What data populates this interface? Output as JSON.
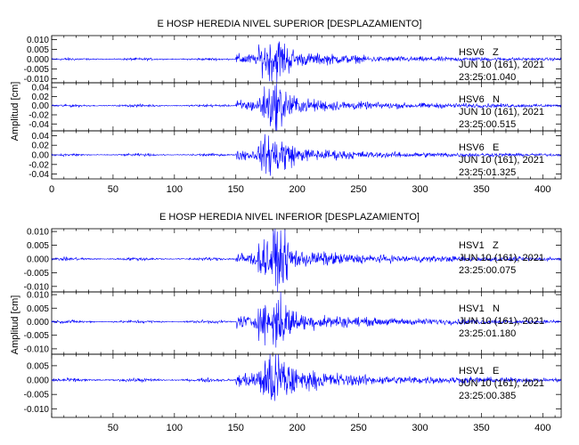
{
  "chart_data": [
    {
      "type": "line",
      "title": "E HOSP HEREDIA NIVEL SUPERIOR [DESPLAZAMIENTO]",
      "ylabel": "Amplitud [cm]",
      "xlim": [
        0,
        415
      ],
      "xticks": [
        0,
        50,
        100,
        150,
        200,
        250,
        300,
        350,
        400
      ],
      "trace_color": "#0000ff",
      "panels": [
        {
          "station": "HSV6",
          "component": "Z",
          "date": "JUN 10 (161), 2021",
          "time": "23:25:01.040",
          "ylim": [
            -0.012,
            0.012
          ],
          "yticks": [
            "0.010",
            "0.005",
            "0.000",
            "-0.005",
            "-0.010"
          ],
          "ytick_values": [
            0.01,
            0.005,
            0,
            -0.005,
            -0.01
          ],
          "peak": 0.01
        },
        {
          "station": "HSV6",
          "component": "N",
          "date": "JUN 10 (161), 2021",
          "time": "23:25:00.515",
          "ylim": [
            -0.055,
            0.05
          ],
          "yticks": [
            "0.04",
            "0.02",
            "0.00",
            "-0.02",
            "-0.04"
          ],
          "ytick_values": [
            0.04,
            0.02,
            0,
            -0.02,
            -0.04
          ],
          "peak": 0.045
        },
        {
          "station": "HSV6",
          "component": "E",
          "date": "JUN 10 (161), 2021",
          "time": "23:25:01.325",
          "ylim": [
            -0.05,
            0.05
          ],
          "yticks": [
            "0.04",
            "0.02",
            "0.00",
            "-0.02",
            "-0.04"
          ],
          "ytick_values": [
            0.04,
            0.02,
            0,
            -0.02,
            -0.04
          ],
          "peak": 0.04
        }
      ]
    },
    {
      "type": "line",
      "title": "E HOSP HEREDIA NIVEL INFERIOR [DESPLAZAMIENTO]",
      "ylabel": "Amplitud [cm]",
      "xlim": [
        0,
        415
      ],
      "xticks": [
        50,
        100,
        150,
        200,
        250,
        300,
        350,
        400
      ],
      "trace_color": "#0000ff",
      "panels": [
        {
          "station": "HSV1",
          "component": "Z",
          "date": "JUN 10 (161), 2021",
          "time": "23:25:00.075",
          "ylim": [
            -0.012,
            0.011
          ],
          "yticks": [
            "0.010",
            "0.005",
            "0.000",
            "-0.005",
            "-0.010"
          ],
          "ytick_values": [
            0.01,
            0.005,
            0,
            -0.005,
            -0.01
          ],
          "peak": 0.009
        },
        {
          "station": "HSV1",
          "component": "N",
          "date": "JUN 10 (161), 2021",
          "time": "23:25:01.180",
          "ylim": [
            -0.012,
            0.011
          ],
          "yticks": [
            "0.010",
            "0.005",
            "0.000",
            "-0.005",
            "-0.010"
          ],
          "ytick_values": [
            0.01,
            0.005,
            0,
            -0.005,
            -0.01
          ],
          "peak": 0.009
        },
        {
          "station": "HSV1",
          "component": "E",
          "date": "JUN 10 (161), 2021",
          "time": "23:25:00.385",
          "ylim": [
            -0.013,
            0.009
          ],
          "yticks": [
            "0.005",
            "0.000",
            "-0.005",
            "-0.010"
          ],
          "ytick_values": [
            0.005,
            0,
            -0.005,
            -0.01
          ],
          "peak": 0.01
        }
      ]
    }
  ]
}
